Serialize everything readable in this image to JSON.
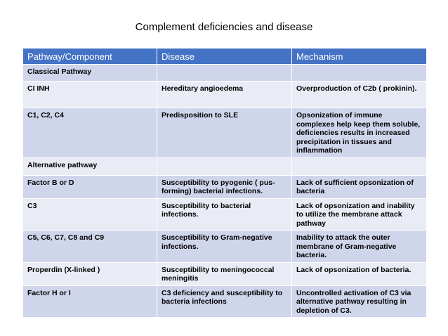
{
  "title": "Complement deficiencies and disease",
  "table": {
    "headers": [
      "Pathway/Component",
      "Disease",
      "Mechanism"
    ],
    "rows": [
      [
        "Classical Pathway",
        "",
        ""
      ],
      [
        "CI INH",
        "Hereditary angioedema",
        "Overproduction of C2b ( prokinin)."
      ],
      [
        "C1, C2, C4",
        "Predisposition to SLE",
        "Opsonization of immune complexes help keep them soluble, deficiencies results  in increased precipitation in tissues and inflammation"
      ],
      [
        "Alternative  pathway",
        "",
        ""
      ],
      [
        "Factor B or D",
        "Susceptibility to pyogenic ( pus-forming) bacterial infections.",
        "Lack of sufficient opsonization of bacteria"
      ],
      [
        "C3",
        "Susceptibility to bacterial infections.",
        "Lack of opsonization and inability to utilize the membrane attack pathway"
      ],
      [
        "C5, C6, C7, C8 and C9",
        "Susceptibility to Gram-negative infections.",
        "Inability to attack the outer membrane of Gram-negative bacteria."
      ],
      [
        "Properdin (X-linked )",
        "Susceptibility to meningococcal meningitis",
        "Lack of opsonization of bacteria."
      ],
      [
        "Factor H or I",
        "C3 deficiency and susceptibility to bacteria infections",
        "Uncontrolled activation of C3 via alternative pathway resulting in depletion of C3."
      ]
    ]
  },
  "colors": {
    "header_bg": "#4472c4",
    "row_dark": "#cfd5ea",
    "row_light": "#e9ebf5"
  }
}
